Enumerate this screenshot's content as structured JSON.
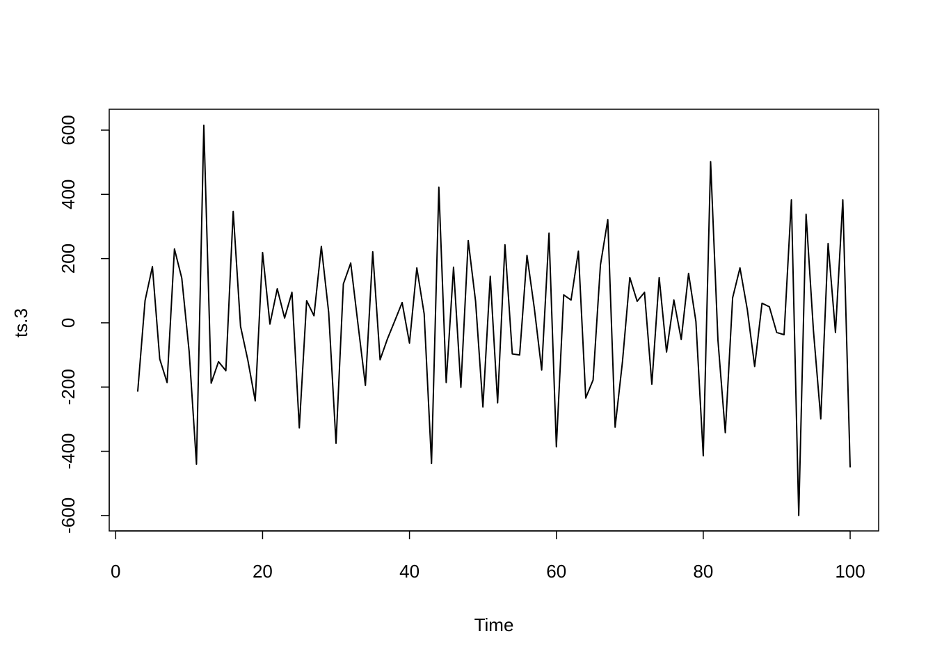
{
  "chart_data": {
    "type": "line",
    "x_label": "Time",
    "y_label": "ts.3",
    "color": "#000000",
    "x": [
      3,
      4,
      5,
      6,
      7,
      8,
      9,
      10,
      11,
      12,
      13,
      14,
      15,
      16,
      17,
      18,
      19,
      20,
      21,
      22,
      23,
      24,
      25,
      26,
      27,
      28,
      29,
      30,
      31,
      32,
      33,
      34,
      35,
      36,
      37,
      38,
      39,
      40,
      41,
      42,
      43,
      44,
      45,
      46,
      47,
      48,
      49,
      50,
      51,
      52,
      53,
      54,
      55,
      56,
      57,
      58,
      59,
      60,
      61,
      62,
      63,
      64,
      65,
      66,
      67,
      68,
      69,
      70,
      71,
      72,
      73,
      74,
      75,
      76,
      77,
      78,
      79,
      80,
      81,
      82,
      83,
      84,
      85,
      86,
      87,
      88,
      89,
      90,
      91,
      92,
      93,
      94,
      95,
      96,
      97,
      98,
      99,
      100
    ],
    "values": [
      -214,
      69,
      175,
      -113,
      -186,
      230,
      139,
      -89,
      -440,
      615,
      -188,
      -121,
      -149,
      347,
      -11,
      -117,
      -243,
      219,
      -4,
      106,
      15,
      95,
      -327,
      69,
      22,
      238,
      32,
      -375,
      121,
      186,
      -6,
      -195,
      221,
      -115,
      -50,
      6,
      63,
      -63,
      171,
      28,
      -438,
      422,
      -186,
      173,
      -201,
      256,
      67,
      -262,
      145,
      -249,
      243,
      -97,
      -100,
      210,
      45,
      -147,
      279,
      -386,
      87,
      71,
      223,
      -234,
      -178,
      180,
      321,
      -325,
      -121,
      141,
      67,
      95,
      -191,
      141,
      -91,
      71,
      -52,
      154,
      4,
      -414,
      502,
      -54,
      -342,
      78,
      171,
      41,
      -136,
      61,
      50,
      -30,
      -37,
      383,
      -600,
      338,
      -24,
      -299,
      247,
      -30,
      383,
      -450
    ],
    "xlim": [
      -0.88,
      103.88
    ],
    "ylim": [
      -648,
      665
    ],
    "xticks": [
      0,
      20,
      40,
      60,
      80,
      100
    ],
    "yticks": [
      -600,
      -400,
      -200,
      0,
      200,
      400,
      600
    ]
  }
}
